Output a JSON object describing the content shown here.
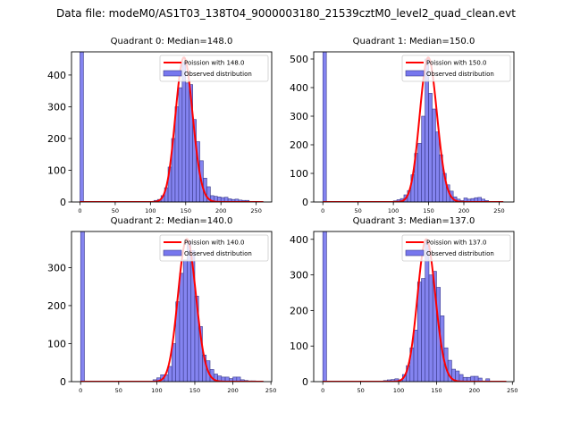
{
  "suptitle": "Data file: modeM0/AS1T03_138T04_9000003180_21539cztM0_level2_quad_clean.evt",
  "colors": {
    "bar_fill": "#7777ee",
    "bar_edge": "#3a3a8a",
    "poisson_line": "#ff0000",
    "axis": "#000000"
  },
  "chart_data": [
    {
      "type": "bar",
      "title": "Quadrant 0: Median=148.0",
      "xlabel": "",
      "ylabel": "",
      "xlim": [
        -12,
        272
      ],
      "ylim": [
        0,
        473
      ],
      "xticks": [
        0,
        50,
        100,
        150,
        200,
        250
      ],
      "yticks": [
        0,
        100,
        200,
        300,
        400
      ],
      "bin_width": 5,
      "bins": [
        0,
        105,
        110,
        115,
        120,
        125,
        130,
        135,
        140,
        145,
        150,
        155,
        160,
        165,
        170,
        175,
        180,
        185,
        190,
        195,
        200,
        205,
        210,
        215,
        220,
        225,
        230,
        235,
        240,
        245,
        250,
        255
      ],
      "values": [
        600,
        5,
        8,
        20,
        45,
        110,
        200,
        300,
        360,
        440,
        375,
        370,
        260,
        190,
        130,
        75,
        48,
        20,
        18,
        16,
        14,
        15,
        10,
        8,
        9,
        6,
        5,
        5,
        2,
        2,
        2,
        1
      ],
      "poisson_mean": 148.0,
      "poisson_peak": 455,
      "poisson_xrange": [
        0,
        260
      ],
      "legend": [
        "Poission with 148.0",
        "Observed distribution"
      ],
      "legend_loc": "upper right"
    },
    {
      "type": "bar",
      "title": "Quadrant 1: Median=150.0",
      "xlabel": "",
      "ylabel": "",
      "xlim": [
        -13,
        271
      ],
      "ylim": [
        0,
        525
      ],
      "xticks": [
        0,
        50,
        100,
        150,
        200,
        250
      ],
      "yticks": [
        0,
        100,
        200,
        300,
        400,
        500
      ],
      "bin_width": 5,
      "bins": [
        0,
        95,
        100,
        105,
        110,
        115,
        120,
        125,
        130,
        135,
        140,
        145,
        150,
        155,
        160,
        165,
        170,
        175,
        180,
        185,
        190,
        195,
        200,
        205,
        210,
        215,
        220,
        225,
        230,
        235,
        240,
        245,
        250
      ],
      "values": [
        600,
        2,
        4,
        8,
        12,
        25,
        40,
        95,
        170,
        205,
        300,
        500,
        380,
        325,
        245,
        165,
        100,
        60,
        38,
        18,
        10,
        5,
        14,
        10,
        12,
        15,
        16,
        10,
        5,
        2,
        2,
        1,
        1
      ],
      "poisson_mean": 150.0,
      "poisson_peak": 505,
      "poisson_xrange": [
        0,
        256
      ],
      "legend": [
        "Poission with 150.0",
        "Observed distribution"
      ],
      "legend_loc": "upper right"
    },
    {
      "type": "bar",
      "title": "Quadrant 2: Median=140.0",
      "xlabel": "",
      "ylabel": "",
      "xlim": [
        -12,
        251
      ],
      "ylim": [
        0,
        395
      ],
      "xticks": [
        0,
        50,
        100,
        150,
        200,
        250
      ],
      "yticks": [
        0,
        100,
        200,
        300
      ],
      "bin_width": 5,
      "bins": [
        0,
        95,
        100,
        105,
        110,
        115,
        120,
        125,
        130,
        135,
        140,
        145,
        150,
        155,
        160,
        165,
        170,
        175,
        180,
        185,
        190,
        195,
        200,
        205,
        210,
        215,
        220,
        225,
        230,
        235
      ],
      "values": [
        600,
        5,
        10,
        18,
        18,
        40,
        100,
        210,
        285,
        320,
        370,
        345,
        225,
        145,
        70,
        55,
        32,
        20,
        15,
        12,
        12,
        8,
        12,
        12,
        5,
        3,
        2,
        2,
        1,
        1
      ],
      "poisson_mean": 140.0,
      "poisson_peak": 375,
      "poisson_xrange": [
        0,
        240
      ],
      "legend": [
        "Poission with 140.0",
        "Observed distribution"
      ],
      "legend_loc": "upper right"
    },
    {
      "type": "bar",
      "title": "Quadrant 3: Median=137.0",
      "xlabel": "",
      "ylabel": "",
      "xlim": [
        -12,
        252
      ],
      "ylim": [
        0,
        422
      ],
      "xticks": [
        0,
        50,
        100,
        150,
        200,
        250
      ],
      "yticks": [
        0,
        100,
        200,
        300,
        400
      ],
      "bin_width": 5,
      "bins": [
        0,
        55,
        60,
        65,
        70,
        75,
        80,
        85,
        90,
        95,
        100,
        105,
        110,
        115,
        120,
        125,
        130,
        135,
        140,
        145,
        150,
        155,
        160,
        165,
        170,
        175,
        180,
        185,
        190,
        195,
        200,
        205,
        210,
        215,
        220,
        225,
        230,
        235
      ],
      "values": [
        600,
        1,
        1,
        1,
        1,
        1,
        3,
        5,
        6,
        8,
        5,
        20,
        45,
        95,
        145,
        280,
        290,
        395,
        300,
        310,
        265,
        185,
        95,
        60,
        35,
        30,
        20,
        12,
        12,
        15,
        15,
        10,
        2,
        8,
        1,
        1,
        1,
        1
      ],
      "poisson_mean": 137.0,
      "poisson_peak": 400,
      "poisson_xrange": [
        0,
        242
      ],
      "legend": [
        "Poission with 137.0",
        "Observed distribution"
      ],
      "legend_loc": "upper right"
    }
  ]
}
